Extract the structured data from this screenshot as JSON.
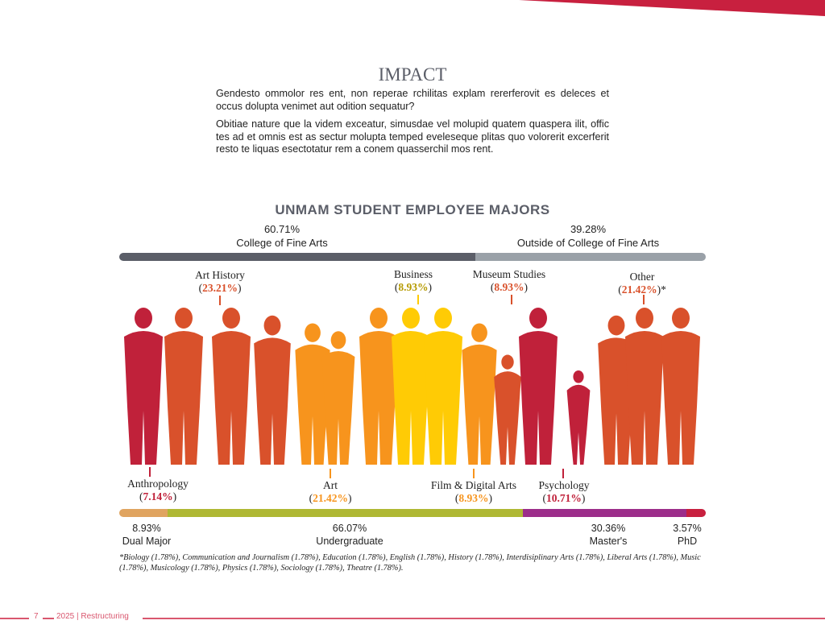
{
  "title": "IMPACT",
  "paragraphs": [
    "Gendesto ommolor res ent, non reperae rchilitas explam rererferovit es deleces et occus dolupta venimet aut odition sequatur?",
    "Obitiae nature que la videm exceatur, simusdae vel molupid quatem quaspera ilit, offic tes ad et omnis est as sectur molupta temped eveleseque plitas quo volorerit excerferit resto te liquas esectotatur rem a conem quasserchil mos rent."
  ],
  "chart": {
    "title": "UNMAM STUDENT EMPLOYEE MAJORS",
    "college": [
      {
        "pct": "60.71%",
        "label": "College of Fine Arts",
        "value": 60.71,
        "color": "#5b5e68"
      },
      {
        "pct": "39.28%",
        "label": "Outside of College of Fine Arts",
        "value": 39.28,
        "color": "#9aa1a8"
      }
    ],
    "majors_top": [
      {
        "name": "Art History",
        "pct": "23.21%",
        "color": "#d9512b"
      },
      {
        "name": "Business",
        "pct": "8.93%",
        "color": "#b59a00"
      },
      {
        "name": "Museum Studies",
        "pct": "8.93%",
        "color": "#d9512b"
      },
      {
        "name": "Other",
        "pct": "21.42%",
        "suffix": "*",
        "color": "#d9512b"
      }
    ],
    "majors_bottom": [
      {
        "name": "Anthropology",
        "pct": "7.14%",
        "color": "#c0213a"
      },
      {
        "name": "Art",
        "pct": "21.42%",
        "color": "#f7941d"
      },
      {
        "name": "Film & Digital Arts",
        "pct": "8.93%",
        "color": "#f7941d"
      },
      {
        "name": "Psychology",
        "pct": "10.71%",
        "color": "#c0213a"
      }
    ],
    "degrees": [
      {
        "pct": "8.93%",
        "label": "Dual Major",
        "value": 8.93,
        "color": "#e0a460"
      },
      {
        "pct": "66.07%",
        "label": "Undergraduate",
        "value": 66.07,
        "color": "#afb834"
      },
      {
        "pct": "30.36%",
        "label": "Master's",
        "value": 30.36,
        "color": "#9c2d8a"
      },
      {
        "pct": "3.57%",
        "label": "PhD",
        "value": 3.57,
        "color": "#c8203f"
      }
    ],
    "footnote": "*Biology (1.78%), Communication and Journalism (1.78%), Education (1.78%), English (1.78%), History (1.78%), Interdisiplinary Arts (1.78%), Liberal Arts (1.78%), Music (1.78%), Musicology (1.78%), Physics (1.78%), Sociology (1.78%), Theatre (1.78%)."
  },
  "footer": {
    "page": "7",
    "text": "2025 | Restructuring"
  }
}
